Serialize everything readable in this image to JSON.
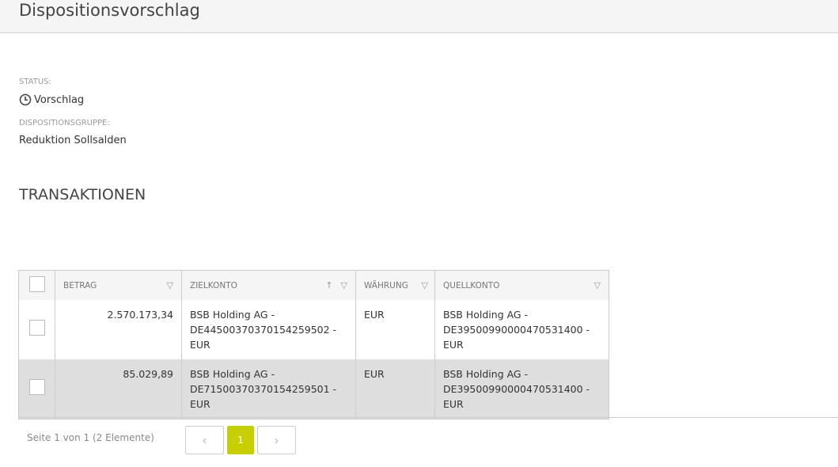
{
  "header": {
    "title": "Dispositionsvorschlag"
  },
  "details": {
    "status_label": "STATUS:",
    "status_value": "Vorschlag",
    "status_icon": "clock-icon",
    "group_label": "DISPOSITIONSGRUPPE:",
    "group_value": "Reduktion Sollsalden"
  },
  "transactions": {
    "title": "TRANSAKTIONEN",
    "columns": [
      "BETRAG",
      "ZIELKONTO",
      "WÄHRUNG",
      "QUELLKONTO"
    ],
    "rows": [
      {
        "betrag": "2.570.173,34",
        "ziel": [
          "BSB Holding AG -",
          "DE44500370370154259502 -",
          "EUR"
        ],
        "waehrung": "EUR",
        "quelle": [
          "BSB Holding AG -",
          "DE39500990000470531400 -",
          "EUR"
        ]
      },
      {
        "betrag": "85.029,89",
        "ziel": [
          "BSB Holding AG -",
          "DE71500370370154259501 -",
          "EUR"
        ],
        "waehrung": "EUR",
        "quelle": [
          "BSB Holding AG -",
          "DE39500990000470531400 -",
          "EUR"
        ]
      }
    ]
  },
  "pagination": {
    "summary": "Seite 1 von 1 (2 Elemente)",
    "current_page": "1",
    "prev": "‹",
    "next": "›"
  },
  "colors": {
    "accent": "#c8cf00",
    "selected_row": "#dedede"
  }
}
